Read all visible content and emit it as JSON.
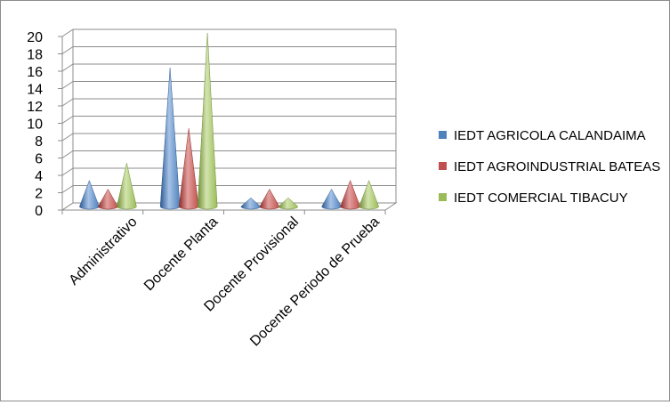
{
  "chart_data": {
    "type": "bar",
    "style": "3d-cone",
    "categories": [
      "Administrativo",
      "Docente Planta",
      "Docente Provisional",
      "Docente Periodo de Prueba"
    ],
    "series": [
      {
        "name": "IEDT AGRICOLA CALANDAIMA",
        "values": [
          3,
          16,
          1,
          2
        ],
        "color": "#4f81bd",
        "light": "#a7c3e6",
        "dark": "#2c5a93"
      },
      {
        "name": "IEDT AGROINDUSTRIAL BATEAS",
        "values": [
          2,
          9,
          2,
          3
        ],
        "color": "#c0504d",
        "light": "#e3a09e",
        "dark": "#8e2b28"
      },
      {
        "name": "IEDT COMERCIAL TIBACUY",
        "values": [
          5,
          20,
          1,
          3
        ],
        "color": "#9bbb59",
        "light": "#d2e4ad",
        "dark": "#6f8d35"
      }
    ],
    "ylim": [
      0,
      20
    ],
    "yticks": [
      "0",
      "2",
      "4",
      "6",
      "8",
      "10",
      "12",
      "14",
      "16",
      "18",
      "20"
    ],
    "legend_position": "right",
    "grid": true
  }
}
